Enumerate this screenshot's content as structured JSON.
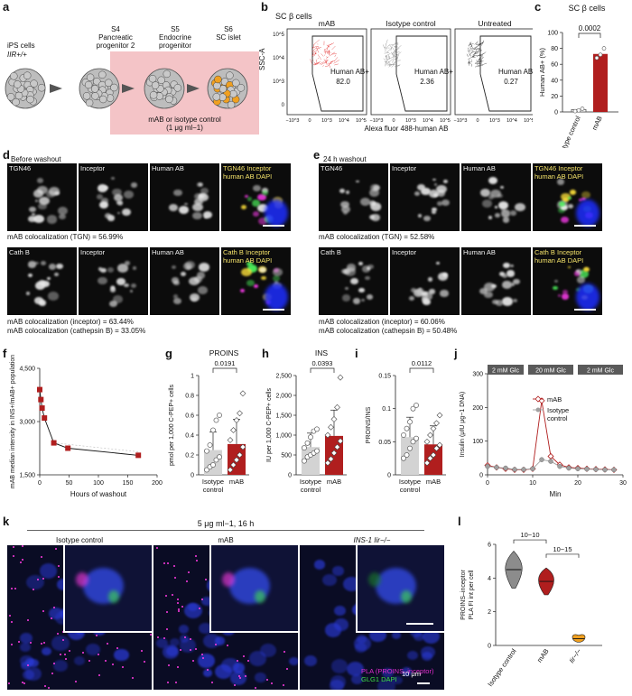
{
  "panel_letters": {
    "a": "a",
    "b": "b",
    "c": "c",
    "d": "d",
    "e": "e",
    "f": "f",
    "g": "g",
    "h": "h",
    "i": "i",
    "j": "j",
    "k": "k",
    "l": "l"
  },
  "panel_a": {
    "stage0": "iPS cells",
    "stage0_genotype": "IIR+/+",
    "stage1": "S4\nPancreatic\nprogenitor 2",
    "stage2": "S5\nEndocrine\nprogenitor",
    "stage3": "S6\nSC islet",
    "treatment": "mAB or isotype control\n(1 μg ml−1)"
  },
  "panel_b": {
    "title": "SC β cells",
    "ylabel": "SSC-A",
    "xlabel": "Alexa fluor 488-human AB",
    "plots": [
      {
        "name": "mAB",
        "gate_label": "Human AB+",
        "pct": "82.0",
        "color": "#e01b1b"
      },
      {
        "name": "Isotype control",
        "gate_label": "Human AB+",
        "pct": "2.36",
        "color": "#777777"
      },
      {
        "name": "Untreated",
        "gate_label": "Human AB+",
        "pct": "0.27",
        "color": "#222222"
      }
    ],
    "yticks": [
      "10^5",
      "10^4",
      "10^3",
      "0"
    ],
    "xticks": [
      "−10^3",
      "0",
      "10^3",
      "10^4",
      "10^5"
    ]
  },
  "panel_c": {
    "title": "SC β cells",
    "p": "0.0002",
    "ylabel": "Human AB+ (%)",
    "yticks": [
      "0",
      "20",
      "40",
      "60",
      "80",
      "100"
    ],
    "categories": [
      "Isotype control",
      "mAB"
    ]
  },
  "panel_d": {
    "title": "Before washout",
    "row1": [
      "TGN46",
      "Inceptor",
      "Human AB",
      "TGN46 Inceptor human AB DAPI"
    ],
    "row1_caption": "mAB colocalization (TGN) = 56.99%",
    "row2": [
      "Cath B",
      "Inceptor",
      "Human AB",
      "Cath B Inceptor human AB DAPI"
    ],
    "row2_caption1": "mAB colocalization (inceptor) = 63.44%",
    "row2_caption2": "mAB colocalization (cathepsin B) = 33.05%"
  },
  "panel_e": {
    "title": "24 h washout",
    "row1": [
      "TGN46",
      "Inceptor",
      "Human AB",
      "TGN46 Inceptor human AB DAPI"
    ],
    "row1_caption": "mAB colocalization (TGN) = 52.58%",
    "row2": [
      "Cath B",
      "Inceptor",
      "Human AB",
      "Cath B Inceptor human AB DAPI"
    ],
    "row2_caption1": "mAB colocalization (inceptor) = 60.06%",
    "row2_caption2": "mAB colocalization (cathepsin B) = 50.48%"
  },
  "panel_k": {
    "header": "5 μg ml−1, 16 h",
    "cols": [
      "Isotype control",
      "mAB",
      "INS-1 Iir−/−"
    ],
    "legend1": "PLA (PROINS–inceptor)",
    "legend2": "GLG1 DAPI",
    "scale": "10 μm"
  },
  "chart_data": [
    {
      "panel": "f",
      "type": "line",
      "x": [
        0,
        2,
        4,
        8,
        24,
        48,
        168
      ],
      "y": [
        3900,
        3620,
        3380,
        3100,
        2400,
        2250,
        2050
      ],
      "xlabel": "Hours of washout",
      "ylabel": "mAB median intensity in INS+/mAB+ population",
      "xlim": [
        0,
        200
      ],
      "ylim": [
        1500,
        4500
      ],
      "xticks": [
        0,
        50,
        100,
        150,
        200
      ],
      "yticks": [
        1500,
        3000,
        4500
      ],
      "color": "#b01e1e"
    },
    {
      "panel": "g",
      "type": "bar",
      "title": "PROINS",
      "p": "0.0191",
      "categories": [
        "Isotype control",
        "mAB"
      ],
      "values": [
        0.25,
        0.31
      ],
      "errors": [
        0.18,
        0.25
      ],
      "points": [
        [
          0.05,
          0.08,
          0.1,
          0.15,
          0.18,
          0.24,
          0.3,
          0.45,
          0.55,
          0.6
        ],
        [
          0.05,
          0.1,
          0.15,
          0.2,
          0.28,
          0.35,
          0.45,
          0.55,
          0.62,
          0.82
        ]
      ],
      "ylabel": "pmol per 1,000 C-PEP+ cells",
      "ylim": [
        0,
        1.0
      ],
      "yticks": [
        0,
        0.2,
        0.4,
        0.6,
        0.8,
        1.0
      ],
      "colors": [
        "#d3d3d3",
        "#b01e1e"
      ]
    },
    {
      "panel": "h",
      "type": "bar",
      "title": "INS",
      "p": "0.0393",
      "categories": [
        "Isotype control",
        "mAB"
      ],
      "values": [
        700,
        980
      ],
      "errors": [
        350,
        650
      ],
      "points": [
        [
          350,
          450,
          500,
          550,
          600,
          680,
          800,
          950,
          1100,
          1150
        ],
        [
          300,
          400,
          550,
          700,
          850,
          1000,
          1200,
          1400,
          1700,
          2450
        ]
      ],
      "ylabel": "IU per 1,000 C-PEP+ cells",
      "ylim": [
        0,
        2500
      ],
      "yticks": [
        0,
        500,
        1000,
        1500,
        2000,
        2500
      ],
      "colors": [
        "#d3d3d3",
        "#b01e1e"
      ]
    },
    {
      "panel": "i",
      "type": "bar",
      "p": "0.0112",
      "categories": [
        "Isotype control",
        "mAB"
      ],
      "values": [
        0.057,
        0.046
      ],
      "errors": [
        0.03,
        0.028
      ],
      "points": [
        [
          0.025,
          0.03,
          0.04,
          0.05,
          0.055,
          0.06,
          0.07,
          0.08,
          0.1,
          0.105
        ],
        [
          0.018,
          0.025,
          0.03,
          0.04,
          0.045,
          0.05,
          0.06,
          0.07,
          0.078,
          0.09
        ]
      ],
      "ylabel": "PROINS/INS",
      "ylim": [
        0,
        0.15
      ],
      "yticks": [
        0,
        0.05,
        0.1,
        0.15
      ],
      "colors": [
        "#d3d3d3",
        "#b01e1e"
      ]
    },
    {
      "panel": "j",
      "type": "line",
      "x": [
        0,
        2,
        4,
        6,
        8,
        10,
        12,
        14,
        16,
        18,
        20,
        22,
        24,
        26,
        28
      ],
      "series": [
        {
          "name": "mAB",
          "values": [
            28,
            22,
            18,
            15,
            15,
            18,
            220,
            55,
            30,
            22,
            20,
            18,
            17,
            16,
            15
          ],
          "color": "#b01e1e"
        },
        {
          "name": "Isotype control",
          "values": [
            25,
            22,
            20,
            16,
            16,
            18,
            45,
            40,
            25,
            20,
            18,
            17,
            16,
            15,
            15
          ],
          "color": "#a0a0a0"
        }
      ],
      "xlabel": "Min",
      "ylabel": "Insulin (μIU μg−1 DNA)",
      "xlim": [
        0,
        30
      ],
      "ylim": [
        0,
        300
      ],
      "xticks": [
        0,
        10,
        20,
        30
      ],
      "yticks": [
        0,
        100,
        200,
        300
      ],
      "bands": [
        "2 mM Glc",
        "20 mM Glc",
        "2 mM Glc"
      ]
    },
    {
      "panel": "l",
      "type": "violin",
      "categories": [
        "Isotype control",
        "mAB",
        "Iir−/−"
      ],
      "medians": [
        4.5,
        3.8,
        0.4
      ],
      "ylabel": "PROINS–inceptor PLA FI int per cell",
      "ylim": [
        0,
        6
      ],
      "yticks": [
        0,
        2,
        4,
        6
      ],
      "p1": "10−10",
      "p2": "10−15",
      "colors": [
        "#8c8c8c",
        "#b01e1e",
        "#f0a020"
      ]
    }
  ]
}
